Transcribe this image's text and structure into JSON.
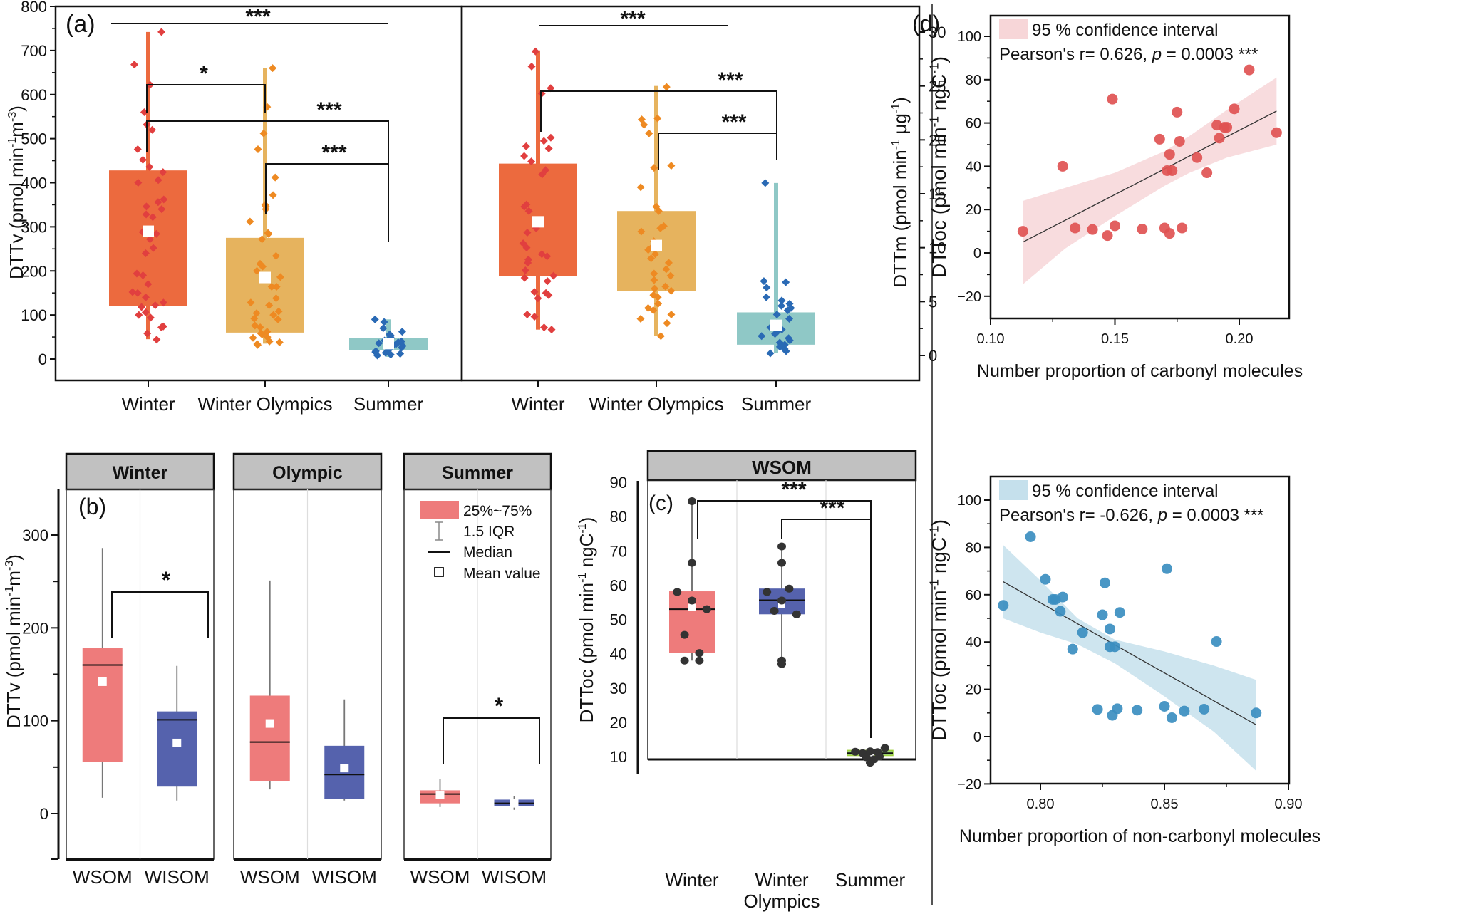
{
  "figure": {
    "panel_labels": {
      "a": "(a)",
      "b": "(b)",
      "c": "(c)",
      "d": "(d)"
    }
  },
  "chart_data": [
    {
      "id": "a-left",
      "type": "box",
      "panel": "(a)",
      "ylabel": "DTTv (pmol min-1m-3)",
      "ylabel_parts": [
        "DTTv (pmol min",
        "-1",
        "m",
        "-3",
        ")"
      ],
      "ylim": [
        -50,
        800
      ],
      "yticks": [
        0,
        100,
        200,
        300,
        400,
        500,
        600,
        700,
        800
      ],
      "categories": [
        "Winter",
        "Winter Olympics",
        "Summer"
      ],
      "colors": {
        "box": [
          "#ec6a3e",
          "#e6b35e",
          "#8fc8c6"
        ],
        "points": [
          "#e13f3f",
          "#ee8a22",
          "#2a6ab5"
        ]
      },
      "boxes": [
        {
          "q1": 120,
          "q3": 428,
          "min": 45,
          "max": 742,
          "mean": 290
        },
        {
          "q1": 60,
          "q3": 275,
          "min": 35,
          "max": 660,
          "mean": 185
        },
        {
          "q1": 20,
          "q3": 47,
          "min": 5,
          "max": 90,
          "mean": 35
        }
      ],
      "points": [
        [
          742,
          668,
          622,
          560,
          532,
          520,
          476,
          452,
          436,
          424,
          406,
          400,
          362,
          356,
          346,
          340,
          328,
          322,
          288,
          284,
          272,
          252,
          240,
          194,
          190,
          170,
          152,
          150,
          140,
          128,
          122,
          118,
          106,
          100,
          94,
          74,
          72,
          58,
          44
        ],
        [
          660,
          572,
          512,
          476,
          412,
          372,
          350,
          346,
          340,
          312,
          286,
          284,
          272,
          234,
          216,
          210,
          200,
          186,
          164,
          164,
          138,
          128,
          122,
          108,
          104,
          100,
          92,
          90,
          76,
          72,
          62,
          58,
          56,
          50,
          48,
          40,
          38,
          34,
          32
        ],
        [
          90,
          84,
          70,
          62,
          56,
          54,
          50,
          48,
          46,
          42,
          40,
          38,
          36,
          34,
          32,
          30,
          28,
          26,
          24,
          22,
          20,
          18,
          16,
          14,
          12,
          10,
          8
        ]
      ],
      "significance": [
        {
          "pair": [
            0,
            2
          ],
          "label": "***"
        },
        {
          "pair": [
            0,
            1
          ],
          "label": "*"
        },
        {
          "pair": [
            0,
            2
          ],
          "label": "***"
        },
        {
          "pair": [
            1,
            2
          ],
          "label": "***"
        }
      ]
    },
    {
      "id": "a-right",
      "type": "box",
      "ylabel": "DTTm (pmol min-1 μg-1)",
      "ylabel_parts": [
        "DTTm (pmol min",
        "-1",
        " μg",
        "-1",
        ")"
      ],
      "ylim": [
        -2.2,
        32.4
      ],
      "yticks": [
        0,
        5,
        10,
        15,
        20,
        25,
        30
      ],
      "categories": [
        "Winter",
        "Winter Olympics",
        "Summer"
      ],
      "boxes": [
        {
          "q1": 7.4,
          "q3": 17.8,
          "min": 2.4,
          "max": 28.3,
          "mean": 12.4
        },
        {
          "q1": 6.0,
          "q3": 13.4,
          "min": 1.8,
          "max": 25.0,
          "mean": 10.2
        },
        {
          "q1": 1.0,
          "q3": 4.0,
          "min": 0.2,
          "max": 16.0,
          "mean": 2.8
        }
      ],
      "points": [
        [
          28.2,
          26.8,
          24.8,
          24.3,
          20.2,
          19.9,
          19.4,
          19.2,
          18.5,
          18.0,
          17.2,
          16.8,
          14.0,
          13.8,
          13.4,
          12.2,
          11.8,
          11.4,
          10.4,
          10.0,
          9.4,
          9.2,
          8.9,
          8.6,
          7.9,
          7.4,
          7.2,
          6.9,
          5.9,
          5.8,
          5.6,
          5.3,
          3.8,
          3.6,
          2.6,
          2.4
        ],
        [
          24.9,
          22.0,
          21.9,
          21.4,
          20.6,
          17.6,
          17.4,
          15.6,
          13.8,
          13.4,
          12.0,
          11.8,
          11.5,
          10.6,
          10.0,
          9.8,
          9.4,
          9.0,
          8.6,
          8.0,
          7.6,
          7.4,
          7.0,
          6.4,
          6.2,
          6.0,
          5.6,
          5.4,
          4.8,
          4.4,
          4.2,
          3.8,
          3.4,
          3.0,
          1.8
        ],
        [
          16.0,
          6.9,
          6.8,
          6.3,
          5.4,
          5.1,
          4.8,
          4.6,
          4.4,
          4.2,
          3.8,
          3.4,
          3.0,
          2.6,
          2.4,
          2.2,
          2.0,
          1.8,
          1.6,
          1.4,
          1.2,
          1.0,
          0.8,
          0.6,
          0.4,
          0.2
        ]
      ],
      "significance": [
        {
          "pair": [
            0,
            2
          ],
          "label": "***"
        },
        {
          "pair": [
            0,
            2
          ],
          "label": "***"
        },
        {
          "pair": [
            1,
            2
          ],
          "label": "***"
        }
      ]
    },
    {
      "id": "b",
      "type": "box",
      "panel": "(b)",
      "ylabel": "DTTv (pmol min-1m-3)",
      "ylabel_parts": [
        "DTTv (pmol min",
        "-1",
        "m",
        "-3",
        ")"
      ],
      "ylim": [
        -50,
        350
      ],
      "yticks": [
        0,
        100,
        200,
        300
      ],
      "facets": [
        "Winter",
        "Olympic",
        "Summer"
      ],
      "categories": [
        "WSOM",
        "WISOM"
      ],
      "colors": {
        "WSOM": "#ee7b7b",
        "WISOM": "#5562ad"
      },
      "groups": [
        [
          {
            "q1": 56,
            "q3": 178,
            "median": 160,
            "mean": 142,
            "min": 17,
            "max": 286
          },
          {
            "q1": 29,
            "q3": 110,
            "median": 101,
            "mean": 76,
            "min": 14,
            "max": 159
          }
        ],
        [
          {
            "q1": 35,
            "q3": 127,
            "median": 77,
            "mean": 97,
            "min": 26,
            "max": 251
          },
          {
            "q1": 16,
            "q3": 73,
            "median": 42,
            "mean": 49,
            "min": 14,
            "max": 123
          }
        ],
        [
          {
            "q1": 11,
            "q3": 25,
            "median": 21,
            "mean": 20,
            "min": 7,
            "max": 37
          },
          {
            "q1": 8,
            "q3": 15,
            "median": 11,
            "mean": 11,
            "min": 4,
            "max": 19
          }
        ]
      ],
      "significance": [
        {
          "facet": 0,
          "label": "*"
        },
        {
          "facet": 2,
          "label": "*"
        }
      ],
      "legend": {
        "position": "top-right",
        "items": [
          "25%~75%",
          "1.5 IQR",
          "Median",
          "Mean value"
        ]
      }
    },
    {
      "id": "c",
      "type": "box",
      "panel": "(c)",
      "title": "WSOM",
      "ylabel": "DTToc (pmol min-1 ngC-1)",
      "ylabel_parts": [
        "DTToc (pmol min",
        "-1",
        " ngC",
        "-1",
        ")"
      ],
      "ylim": [
        5,
        91
      ],
      "yticks": [
        10,
        20,
        30,
        40,
        50,
        60,
        70,
        80,
        90
      ],
      "categories": [
        "Winter",
        "Winter Olympics",
        "Summer"
      ],
      "category_lines": [
        [
          "Winter"
        ],
        [
          "Winter",
          "Olympics"
        ],
        [
          "Summer"
        ]
      ],
      "colors": {
        "box": [
          "#ee7b7b",
          "#5562ad",
          "#9bcf7a"
        ],
        "points": "#333333"
      },
      "boxes": [
        {
          "q1": 40.2,
          "q3": 58.2,
          "median": 53.0,
          "mean": 53.5,
          "min": 38,
          "max": 84.5
        },
        {
          "q1": 51.5,
          "q3": 59.0,
          "median": 55.6,
          "mean": 54.4,
          "min": 37,
          "max": 71.3
        },
        {
          "q1": 10.3,
          "q3": 11.8,
          "median": 11.0,
          "mean": 11.0,
          "min": 8.5,
          "max": 12.5
        }
      ],
      "points": [
        [
          [
            0,
            84.5
          ],
          [
            0,
            66.5
          ],
          [
            -0.4,
            58.0
          ],
          [
            0,
            55.5
          ],
          [
            0.4,
            53.0
          ],
          [
            -0.2,
            45.5
          ],
          [
            0.2,
            40.2
          ],
          [
            -0.2,
            38.0
          ],
          [
            0.2,
            38.0
          ]
        ],
        [
          [
            0,
            71.3
          ],
          [
            0,
            66.5
          ],
          [
            -0.4,
            58.0
          ],
          [
            0.2,
            59.0
          ],
          [
            0,
            55.5
          ],
          [
            -0.2,
            52.5
          ],
          [
            0.4,
            51.5
          ],
          [
            0,
            38.0
          ],
          [
            0,
            37.0
          ]
        ],
        [
          [
            -0.4,
            11.4
          ],
          [
            -0.2,
            11.0
          ],
          [
            0,
            11.5
          ],
          [
            0.2,
            11.3
          ],
          [
            0.4,
            12.5
          ],
          [
            0.25,
            10.0
          ],
          [
            0.1,
            9.2
          ],
          [
            -0.1,
            9.8
          ],
          [
            0,
            8.2
          ]
        ]
      ],
      "significance": [
        {
          "pair": [
            0,
            2
          ],
          "label": "***"
        },
        {
          "pair": [
            1,
            2
          ],
          "label": "***"
        }
      ]
    },
    {
      "id": "d-top",
      "type": "scatter",
      "panel": "(d)",
      "xlabel": "Number proportion of carbonyl molecules",
      "ylabel": "DTToc (pmol min-1 ngC-1)",
      "ylabel_parts": [
        "DTToc (pmol min",
        "-1",
        " ngC",
        "-1",
        ")"
      ],
      "xlim": [
        0.1,
        0.224
      ],
      "ylim": [
        -30,
        110
      ],
      "xticks": [
        0.1,
        0.15,
        0.2
      ],
      "yticks": [
        -20,
        0,
        20,
        40,
        60,
        80,
        100
      ],
      "color": "#e05252",
      "band_color": "#f7d6d8",
      "legend": "95 % confidence interval",
      "annotation": {
        "prefix": "Pearson's r= 0.626, ",
        "p": "p",
        "suffix": " = 0.0003 ***"
      },
      "fit": {
        "x": [
          0.113,
          0.215
        ],
        "y": [
          5,
          65.5
        ]
      },
      "band": {
        "x": [
          0.113,
          0.13,
          0.15,
          0.17,
          0.18,
          0.195,
          0.215
        ],
        "upper": [
          24,
          30,
          37,
          47,
          54,
          66,
          81
        ],
        "lower": [
          -14.5,
          2,
          17,
          31,
          37,
          44,
          50
        ]
      },
      "points": [
        [
          0.113,
          10
        ],
        [
          0.129,
          40
        ],
        [
          0.134,
          11.5
        ],
        [
          0.141,
          10.8
        ],
        [
          0.147,
          8
        ],
        [
          0.149,
          71
        ],
        [
          0.15,
          12.5
        ],
        [
          0.161,
          11
        ],
        [
          0.168,
          52.5
        ],
        [
          0.17,
          11.5
        ],
        [
          0.171,
          38
        ],
        [
          0.172,
          9
        ],
        [
          0.172,
          45.5
        ],
        [
          0.173,
          38
        ],
        [
          0.175,
          65
        ],
        [
          0.176,
          51.5
        ],
        [
          0.177,
          11.5
        ],
        [
          0.183,
          44
        ],
        [
          0.187,
          37
        ],
        [
          0.191,
          59
        ],
        [
          0.192,
          53
        ],
        [
          0.194,
          58
        ],
        [
          0.195,
          58
        ],
        [
          0.198,
          66.5
        ],
        [
          0.204,
          84.5
        ],
        [
          0.215,
          55.5
        ]
      ]
    },
    {
      "id": "d-bottom",
      "type": "scatter",
      "xlabel": "Number proportion of non-carbonyl molecules",
      "ylabel": "DTToc (pmol min-1 ngC-1)",
      "ylabel_parts": [
        "DTToc (pmol min",
        "-1",
        " ngC",
        "-1",
        ")"
      ],
      "xlim": [
        0.78,
        0.9
      ],
      "ylim": [
        -20,
        110
      ],
      "xticks": [
        0.8,
        0.85,
        0.9
      ],
      "yticks": [
        -20,
        0,
        20,
        40,
        60,
        80,
        100
      ],
      "color": "#3b8ec0",
      "band_color": "#c5e0ec",
      "legend": "95 % confidence interval",
      "annotation": {
        "prefix": "Pearson's r= -0.626, ",
        "p": "p",
        "suffix": " = 0.0003 ***"
      },
      "fit": {
        "x": [
          0.785,
          0.887
        ],
        "y": [
          65.5,
          5
        ]
      },
      "band": {
        "x": [
          0.785,
          0.8,
          0.815,
          0.83,
          0.85,
          0.87,
          0.887
        ],
        "upper": [
          81,
          66,
          50,
          41,
          36,
          30,
          24
        ],
        "lower": [
          50,
          44,
          39,
          31,
          17,
          2,
          -14.5
        ]
      },
      "points": [
        [
          0.785,
          55.5
        ],
        [
          0.796,
          84.5
        ],
        [
          0.802,
          66.5
        ],
        [
          0.805,
          58
        ],
        [
          0.806,
          58
        ],
        [
          0.808,
          53
        ],
        [
          0.809,
          59
        ],
        [
          0.813,
          37
        ],
        [
          0.817,
          44
        ],
        [
          0.823,
          11.5
        ],
        [
          0.825,
          51.5
        ],
        [
          0.826,
          65
        ],
        [
          0.828,
          45.5
        ],
        [
          0.828,
          38
        ],
        [
          0.829,
          9
        ],
        [
          0.83,
          38
        ],
        [
          0.831,
          11.8
        ],
        [
          0.832,
          52.5
        ],
        [
          0.839,
          11.2
        ],
        [
          0.85,
          12.8
        ],
        [
          0.851,
          71
        ],
        [
          0.853,
          8
        ],
        [
          0.858,
          10.8
        ],
        [
          0.866,
          11.6
        ],
        [
          0.871,
          40.2
        ],
        [
          0.887,
          10
        ]
      ]
    }
  ]
}
